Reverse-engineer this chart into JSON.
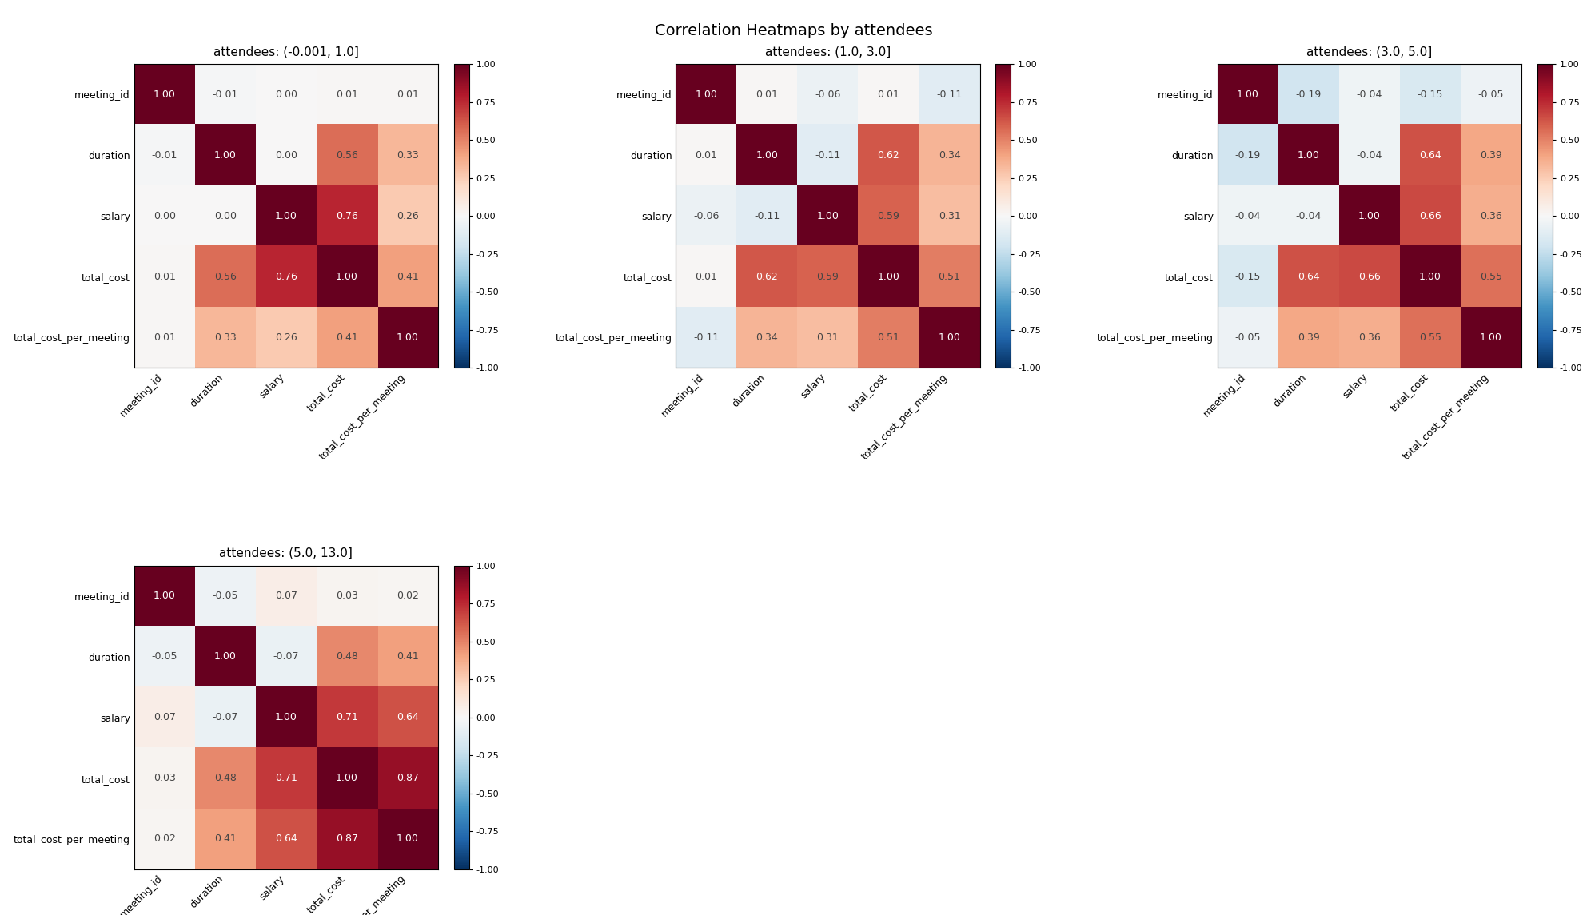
{
  "title": "Correlation Heatmaps by attendees",
  "title_fontsize": 14,
  "labels": [
    "meeting_id",
    "duration",
    "salary",
    "total_cost",
    "total_cost_per_meeting"
  ],
  "subplots": [
    {
      "title": "attendees: (-0.001, 1.0]",
      "matrix": [
        [
          1.0,
          -0.01,
          0.0,
          0.01,
          0.01
        ],
        [
          -0.01,
          1.0,
          0.0,
          0.56,
          0.33
        ],
        [
          0.0,
          0.0,
          1.0,
          0.76,
          0.26
        ],
        [
          0.01,
          0.56,
          0.76,
          1.0,
          0.41
        ],
        [
          0.01,
          0.33,
          0.26,
          0.41,
          1.0
        ]
      ]
    },
    {
      "title": "attendees: (1.0, 3.0]",
      "matrix": [
        [
          1.0,
          0.01,
          -0.06,
          0.01,
          -0.11
        ],
        [
          0.01,
          1.0,
          -0.11,
          0.62,
          0.34
        ],
        [
          -0.06,
          -0.11,
          1.0,
          0.59,
          0.31
        ],
        [
          0.01,
          0.62,
          0.59,
          1.0,
          0.51
        ],
        [
          -0.11,
          0.34,
          0.31,
          0.51,
          1.0
        ]
      ]
    },
    {
      "title": "attendees: (3.0, 5.0]",
      "matrix": [
        [
          1.0,
          -0.19,
          -0.04,
          -0.15,
          -0.05
        ],
        [
          -0.19,
          1.0,
          -0.04,
          0.64,
          0.39
        ],
        [
          -0.04,
          -0.04,
          1.0,
          0.66,
          0.36
        ],
        [
          -0.15,
          0.64,
          0.66,
          1.0,
          0.55
        ],
        [
          -0.05,
          0.39,
          0.36,
          0.55,
          1.0
        ]
      ]
    },
    {
      "title": "attendees: (5.0, 13.0]",
      "matrix": [
        [
          1.0,
          -0.05,
          0.07,
          0.03,
          0.02
        ],
        [
          -0.05,
          1.0,
          -0.07,
          0.48,
          0.41
        ],
        [
          0.07,
          -0.07,
          1.0,
          0.71,
          0.64
        ],
        [
          0.03,
          0.48,
          0.71,
          1.0,
          0.87
        ],
        [
          0.02,
          0.41,
          0.64,
          0.87,
          1.0
        ]
      ]
    }
  ],
  "cmap": "RdBu_r",
  "vmin": -1.0,
  "vmax": 1.0,
  "background_color": "white",
  "subtitle_fontsize": 11,
  "tick_fontsize": 9,
  "annot_fontsize": 9,
  "cbar_tick_fontsize": 8,
  "cbar_ticks": [
    1.0,
    0.75,
    0.5,
    0.25,
    0.0,
    -0.25,
    -0.5,
    -0.75,
    -1.0
  ],
  "cbar_ticklabels": [
    "1.00",
    "0.75",
    "0.50",
    "0.25",
    "0.00",
    "-0.25",
    "-0.50",
    "-0.75",
    "-1.00"
  ]
}
